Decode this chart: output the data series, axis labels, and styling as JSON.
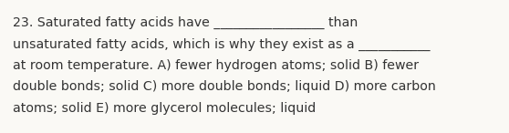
{
  "background_color": "#faf9f5",
  "text_color": "#333333",
  "font_size": 10.2,
  "lines": [
    "23. Saturated fatty acids have _________________ than",
    "unsaturated fatty acids, which is why they exist as a ___________",
    "at room temperature. A) fewer hydrogen atoms; solid B) fewer",
    "double bonds; solid C) more double bonds; liquid D) more carbon",
    "atoms; solid E) more glycerol molecules; liquid"
  ],
  "font_family": "DejaVu Sans",
  "fig_width": 5.58,
  "fig_height": 1.46,
  "dpi": 100
}
